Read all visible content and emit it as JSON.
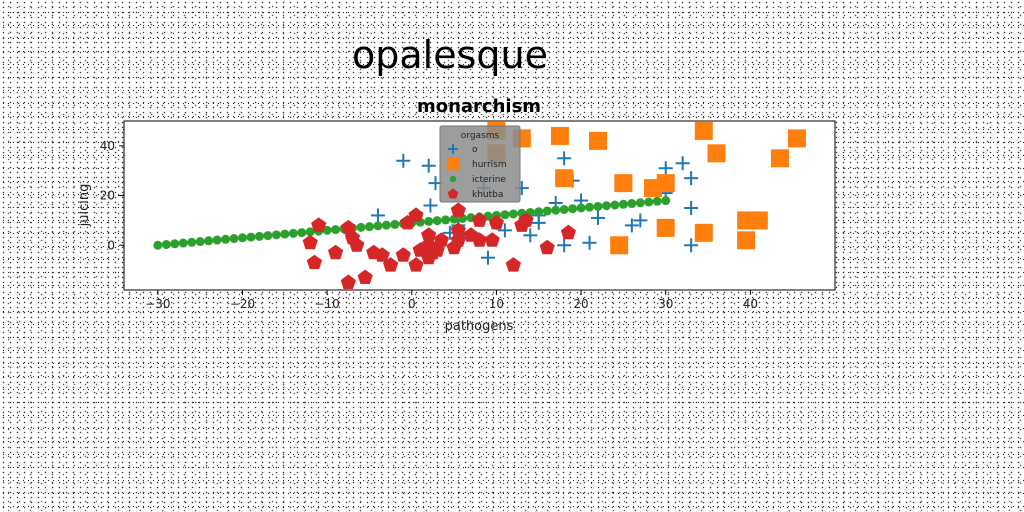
{
  "figure": {
    "suptitle": "opalesque"
  },
  "chart_data": {
    "type": "scatter",
    "title": "monarchism",
    "xlabel": "pathogens",
    "ylabel": "juicing",
    "xlim": [
      -34,
      50
    ],
    "ylim": [
      -18,
      50
    ],
    "xticks": [
      -30,
      -20,
      -10,
      0,
      10,
      20,
      30,
      40
    ],
    "yticks": [
      0,
      20,
      40
    ],
    "grid": false,
    "legend": {
      "title": "orgasms",
      "placement": "top-center"
    },
    "series": [
      {
        "name": "o",
        "marker": "plus",
        "color": "#1f77b4",
        "points": [
          [
            -1,
            34
          ],
          [
            2,
            32
          ],
          [
            2.8,
            25
          ],
          [
            2.2,
            16
          ],
          [
            -4,
            12
          ],
          [
            4.5,
            5
          ],
          [
            5.5,
            8
          ],
          [
            6,
            4
          ],
          [
            8.5,
            23
          ],
          [
            9,
            -5
          ],
          [
            13,
            23
          ],
          [
            15,
            12
          ],
          [
            15,
            9
          ],
          [
            17,
            17
          ],
          [
            18,
            35
          ],
          [
            19,
            26
          ],
          [
            20,
            18
          ],
          [
            21,
            1
          ],
          [
            22,
            11
          ],
          [
            18,
            0
          ],
          [
            30,
            31
          ],
          [
            30,
            21
          ],
          [
            30,
            25
          ],
          [
            32,
            33
          ],
          [
            33,
            27
          ],
          [
            33,
            15
          ],
          [
            33,
            0
          ],
          [
            10,
            9
          ],
          [
            11,
            6
          ],
          [
            14,
            4
          ],
          [
            26,
            8
          ],
          [
            27,
            10
          ]
        ]
      },
      {
        "name": "hurrism",
        "marker": "square",
        "color": "#ff7f0e",
        "points": [
          [
            10,
            46
          ],
          [
            13,
            43
          ],
          [
            17.5,
            44
          ],
          [
            22,
            42
          ],
          [
            10,
            37
          ],
          [
            18,
            27
          ],
          [
            25,
            25
          ],
          [
            28.5,
            23
          ],
          [
            30,
            25
          ],
          [
            34.5,
            46
          ],
          [
            36,
            37
          ],
          [
            43.5,
            35
          ],
          [
            45.5,
            43
          ],
          [
            24.5,
            0
          ],
          [
            30,
            7
          ],
          [
            34.5,
            5
          ],
          [
            39.5,
            10
          ],
          [
            41,
            10
          ],
          [
            39.5,
            2
          ]
        ]
      },
      {
        "name": "icterine",
        "marker": "circle",
        "color": "#2ca02c",
        "points": [
          [
            -30,
            0
          ],
          [
            -29,
            0.3
          ],
          [
            -28,
            0.6
          ],
          [
            -27,
            0.9
          ],
          [
            -26,
            1.2
          ],
          [
            -25,
            1.5
          ],
          [
            -24,
            1.8
          ],
          [
            -23,
            2.1
          ],
          [
            -22,
            2.4
          ],
          [
            -21,
            2.7
          ],
          [
            -20,
            3.0
          ],
          [
            -19,
            3.3
          ],
          [
            -18,
            3.6
          ],
          [
            -17,
            3.9
          ],
          [
            -16,
            4.2
          ],
          [
            -15,
            4.5
          ],
          [
            -14,
            4.8
          ],
          [
            -13,
            5.1
          ],
          [
            -12,
            5.4
          ],
          [
            -11,
            5.7
          ],
          [
            -10,
            6.0
          ],
          [
            -9,
            6.3
          ],
          [
            -8,
            6.6
          ],
          [
            -7,
            6.9
          ],
          [
            -6,
            7.2
          ],
          [
            -5,
            7.5
          ],
          [
            -4,
            7.8
          ],
          [
            -3,
            8.1
          ],
          [
            -2,
            8.4
          ],
          [
            -1,
            8.7
          ],
          [
            0,
            9.0
          ],
          [
            1,
            9.3
          ],
          [
            2,
            9.6
          ],
          [
            3,
            9.9
          ],
          [
            4,
            10.2
          ],
          [
            5,
            10.5
          ],
          [
            6,
            10.8
          ],
          [
            7,
            11.1
          ],
          [
            8,
            11.4
          ],
          [
            9,
            11.7
          ],
          [
            10,
            12.0
          ],
          [
            11,
            12.3
          ],
          [
            12,
            12.6
          ],
          [
            13,
            12.9
          ],
          [
            14,
            13.2
          ],
          [
            15,
            13.5
          ],
          [
            16,
            13.8
          ],
          [
            17,
            14.1
          ],
          [
            18,
            14.4
          ],
          [
            19,
            14.7
          ],
          [
            20,
            15.0
          ],
          [
            21,
            15.3
          ],
          [
            22,
            15.6
          ],
          [
            23,
            15.9
          ],
          [
            24,
            16.2
          ],
          [
            25,
            16.5
          ],
          [
            26,
            16.8
          ],
          [
            27,
            17.1
          ],
          [
            28,
            17.4
          ],
          [
            29,
            17.7
          ],
          [
            30,
            18.0
          ]
        ]
      },
      {
        "name": "khutba",
        "marker": "pentagon",
        "color": "#d62728",
        "points": [
          [
            -11,
            8
          ],
          [
            -12,
            1
          ],
          [
            -11.5,
            -7
          ],
          [
            -9,
            -3
          ],
          [
            -7.5,
            7
          ],
          [
            -7,
            3
          ],
          [
            -6.5,
            0
          ],
          [
            -7.5,
            -15
          ],
          [
            -5.5,
            -13
          ],
          [
            -4.5,
            -3
          ],
          [
            -3.5,
            -4
          ],
          [
            -2.5,
            -8
          ],
          [
            -1,
            -4
          ],
          [
            -0.5,
            9
          ],
          [
            0.5,
            -8
          ],
          [
            1,
            -2
          ],
          [
            0.5,
            12
          ],
          [
            2,
            -5
          ],
          [
            2.5,
            -3
          ],
          [
            2,
            0
          ],
          [
            2,
            4
          ],
          [
            3,
            -2
          ],
          [
            3.5,
            2
          ],
          [
            5,
            -1
          ],
          [
            5.5,
            2
          ],
          [
            5.5,
            14
          ],
          [
            5.5,
            6
          ],
          [
            7,
            4
          ],
          [
            8,
            10
          ],
          [
            8,
            2
          ],
          [
            9.5,
            2
          ],
          [
            10,
            9
          ],
          [
            12,
            -8
          ],
          [
            13,
            8
          ],
          [
            13.5,
            10
          ],
          [
            16,
            -1
          ],
          [
            18.5,
            5
          ]
        ]
      }
    ]
  }
}
